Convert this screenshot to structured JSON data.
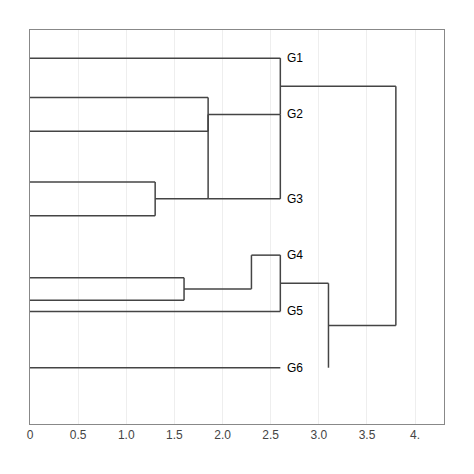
{
  "chart_data": {
    "type": "dendrogram",
    "color": "#444444",
    "grid": true,
    "tick_labels": "x",
    "xlim": [
      0.0,
      4.3
    ],
    "ylim": [
      0.0,
      7.0
    ],
    "xticks": [
      0,
      0.5,
      {
        "value": 1.0,
        "label": "1.0"
      },
      1.5,
      {
        "value": 2.0,
        "label": "2.0"
      },
      2.5,
      {
        "value": 3.0,
        "label": "3.0"
      },
      3.5,
      {
        "value": 4.0,
        "label": "4."
      }
    ],
    "label_x": 2.62,
    "labels": [
      {
        "text": "G1",
        "y": 6.5
      },
      {
        "text": "G2",
        "y": 5.5
      },
      {
        "text": "G3",
        "y": 4.0
      },
      {
        "text": "G4",
        "y": 3.0
      },
      {
        "text": "G5",
        "y": 2.0
      },
      {
        "text": "G6",
        "y": 1.0
      }
    ],
    "segments": [
      {
        "type": "hline",
        "y": 6.5,
        "x1": 0.0,
        "x2": 2.6
      },
      {
        "type": "hline",
        "y": 5.8,
        "x1": 0.0,
        "x2": 1.85
      },
      {
        "type": "hline",
        "y": 5.2,
        "x1": 0.0,
        "x2": 1.85
      },
      {
        "type": "vline",
        "x": 1.85,
        "y1": 5.2,
        "y2": 5.8
      },
      {
        "type": "hline",
        "y": 5.5,
        "x1": 1.85,
        "x2": 2.6
      },
      {
        "type": "vline",
        "x": 2.6,
        "y1": 5.5,
        "y2": 6.5
      },
      {
        "type": "hline",
        "y": 6.0,
        "x1": 2.6,
        "x2": 3.8
      },
      {
        "type": "hline",
        "y": 4.3,
        "x1": 0.0,
        "x2": 1.3
      },
      {
        "type": "hline",
        "y": 3.7,
        "x1": 0.0,
        "x2": 1.3
      },
      {
        "type": "vline",
        "x": 1.3,
        "y1": 3.7,
        "y2": 4.3
      },
      {
        "type": "hline",
        "y": 4.0,
        "x1": 1.3,
        "x2": 1.85
      },
      {
        "type": "vline",
        "x": 1.85,
        "y1": 4.0,
        "y2": 5.5
      },
      {
        "type": "hline",
        "y": 4.0,
        "x1": 1.85,
        "x2": 2.6
      },
      {
        "type": "vline",
        "x": 2.6,
        "y1": 4.0,
        "y2": 5.5
      },
      {
        "type": "hline",
        "y": 2.6,
        "x1": 0.0,
        "x2": 1.6
      },
      {
        "type": "hline",
        "y": 2.2,
        "x1": 0.0,
        "x2": 1.6
      },
      {
        "type": "vline",
        "x": 1.6,
        "y1": 2.2,
        "y2": 2.6
      },
      {
        "type": "hline",
        "y": 2.4,
        "x1": 1.6,
        "x2": 2.3
      },
      {
        "type": "hline",
        "y": 3.0,
        "x1": 2.3,
        "x2": 2.6
      },
      {
        "type": "vline",
        "x": 2.3,
        "y1": 2.4,
        "y2": 3.0
      },
      {
        "type": "hline",
        "y": 2.0,
        "x1": 0.0,
        "x2": 2.6
      },
      {
        "type": "hline",
        "y": 1.0,
        "x1": 0.0,
        "x2": 2.6
      },
      {
        "type": "vline",
        "x": 2.6,
        "y1": 2.0,
        "y2": 3.0
      },
      {
        "type": "hline",
        "y": 2.5,
        "x1": 2.6,
        "x2": 3.1
      },
      {
        "type": "vline",
        "x": 3.1,
        "y1": 1.0,
        "y2": 2.5
      },
      {
        "type": "hline",
        "y": 1.75,
        "x1": 3.1,
        "x2": 3.8
      },
      {
        "type": "vline",
        "x": 3.8,
        "y1": 1.75,
        "y2": 6.0
      }
    ]
  }
}
